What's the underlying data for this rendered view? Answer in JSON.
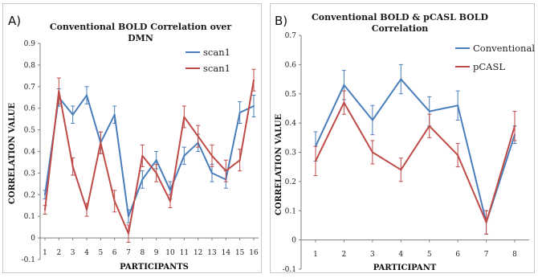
{
  "chart_data": [
    {
      "panel": "A)",
      "type": "line",
      "title": [
        "Conventional  BOLD Correlation  over",
        "DMN"
      ],
      "xlabel": "PARTICIPANTS",
      "ylabel": "CORRELATION VALUE",
      "ylim": [
        -0.1,
        0.9
      ],
      "yticks": [
        "-0.1",
        "0",
        "0.1",
        "0.2",
        "0.3",
        "0.4",
        "0.5",
        "0.6",
        "0.7",
        "0.8",
        "0.9"
      ],
      "x": [
        "1",
        "2",
        "3",
        "4",
        "5",
        "6",
        "7",
        "8",
        "9",
        "10",
        "11",
        "12",
        "13",
        "14",
        "15",
        "16"
      ],
      "grid": false,
      "legend_position": "top-right",
      "series": [
        {
          "name": "scan1",
          "color": "#4a7ebb",
          "values": [
            0.2,
            0.65,
            0.57,
            0.66,
            0.44,
            0.57,
            0.1,
            0.27,
            0.36,
            0.22,
            0.38,
            0.44,
            0.3,
            0.27,
            0.58,
            0.61
          ],
          "errors": [
            0.02,
            0.04,
            0.04,
            0.04,
            0.05,
            0.04,
            0.03,
            0.04,
            0.04,
            0.04,
            0.04,
            0.04,
            0.04,
            0.04,
            0.05,
            0.05
          ]
        },
        {
          "name": "scan1",
          "color": "#be4b48",
          "values": [
            0.13,
            0.68,
            0.33,
            0.13,
            0.44,
            0.17,
            0.02,
            0.38,
            0.3,
            0.17,
            0.56,
            0.47,
            0.38,
            0.31,
            0.36,
            0.73
          ],
          "errors": [
            0.02,
            0.06,
            0.04,
            0.03,
            0.05,
            0.05,
            0.04,
            0.05,
            0.04,
            0.03,
            0.05,
            0.05,
            0.05,
            0.05,
            0.05,
            0.05
          ]
        }
      ]
    },
    {
      "panel": "B)",
      "type": "line",
      "title": [
        "Conventional BOLD & pCASL BOLD",
        "Correlation"
      ],
      "xlabel": "PARTICIPANT",
      "ylabel": "CORRELATION VALUE",
      "ylim": [
        -0.1,
        0.7
      ],
      "yticks": [
        "-0.1",
        "0",
        "0.1",
        "0.2",
        "0.3",
        "0.4",
        "0.5",
        "0.6",
        "0.7"
      ],
      "x": [
        "1",
        "2",
        "3",
        "4",
        "5",
        "6",
        "7",
        "8"
      ],
      "grid": false,
      "legend_position": "top-right",
      "series": [
        {
          "name": "Conventional",
          "color": "#4a7ebb",
          "values": [
            0.32,
            0.53,
            0.41,
            0.55,
            0.44,
            0.46,
            0.06,
            0.36
          ],
          "errors": [
            0.05,
            0.05,
            0.05,
            0.05,
            0.05,
            0.05,
            0.04,
            0.03
          ]
        },
        {
          "name": "pCASL",
          "color": "#be4b48",
          "values": [
            0.27,
            0.47,
            0.3,
            0.24,
            0.39,
            0.29,
            0.06,
            0.39
          ],
          "errors": [
            0.05,
            0.04,
            0.04,
            0.04,
            0.04,
            0.04,
            0.04,
            0.05
          ]
        }
      ]
    }
  ]
}
